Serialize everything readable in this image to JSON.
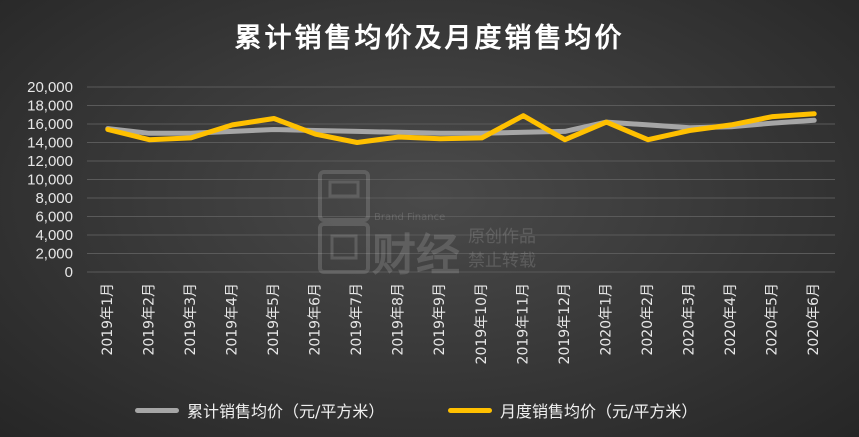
{
  "title": "累计销售均价及月度销售均价",
  "legend": {
    "cumulative": "累计销售均价（元/平方米）",
    "monthly": "月度销售均价（元/平方米）"
  },
  "watermark": {
    "brand_en": "Brand Finance",
    "brand_cn": "财经",
    "line1": "原创作品",
    "line2": "禁止转载"
  },
  "colors": {
    "cumulative": "#a6a6a6",
    "monthly": "#ffc000",
    "grid": "#5a5a5a",
    "text": "#e6e6e6"
  },
  "chart_data": {
    "type": "line",
    "title": "累计销售均价及月度销售均价",
    "categories": [
      "2019年1月",
      "2019年2月",
      "2019年3月",
      "2019年4月",
      "2019年5月",
      "2019年6月",
      "2019年7月",
      "2019年8月",
      "2019年9月",
      "2019年10月",
      "2019年11月",
      "2019年12月",
      "2020年1月",
      "2020年2月",
      "2020年3月",
      "2020年4月",
      "2020年5月",
      "2020年6月"
    ],
    "yticks": [
      "0",
      "2,000",
      "4,000",
      "6,000",
      "8,000",
      "10,000",
      "12,000",
      "14,000",
      "16,000",
      "18,000",
      "20,000"
    ],
    "ylim": [
      0,
      20000
    ],
    "grid": true,
    "legend_position": "bottom",
    "series": [
      {
        "name": "累计销售均价（元/平方米）",
        "values": [
          15500,
          15000,
          15000,
          15200,
          15400,
          15300,
          15200,
          15100,
          15000,
          15000,
          15100,
          15200,
          16200,
          15900,
          15600,
          15700,
          16100,
          16400
        ]
      },
      {
        "name": "月度销售均价（元/平方米）",
        "values": [
          15400,
          14300,
          14500,
          15900,
          16600,
          14900,
          14000,
          14600,
          14400,
          14500,
          16900,
          14300,
          16200,
          14300,
          15300,
          15900,
          16800,
          17100
        ]
      }
    ]
  }
}
